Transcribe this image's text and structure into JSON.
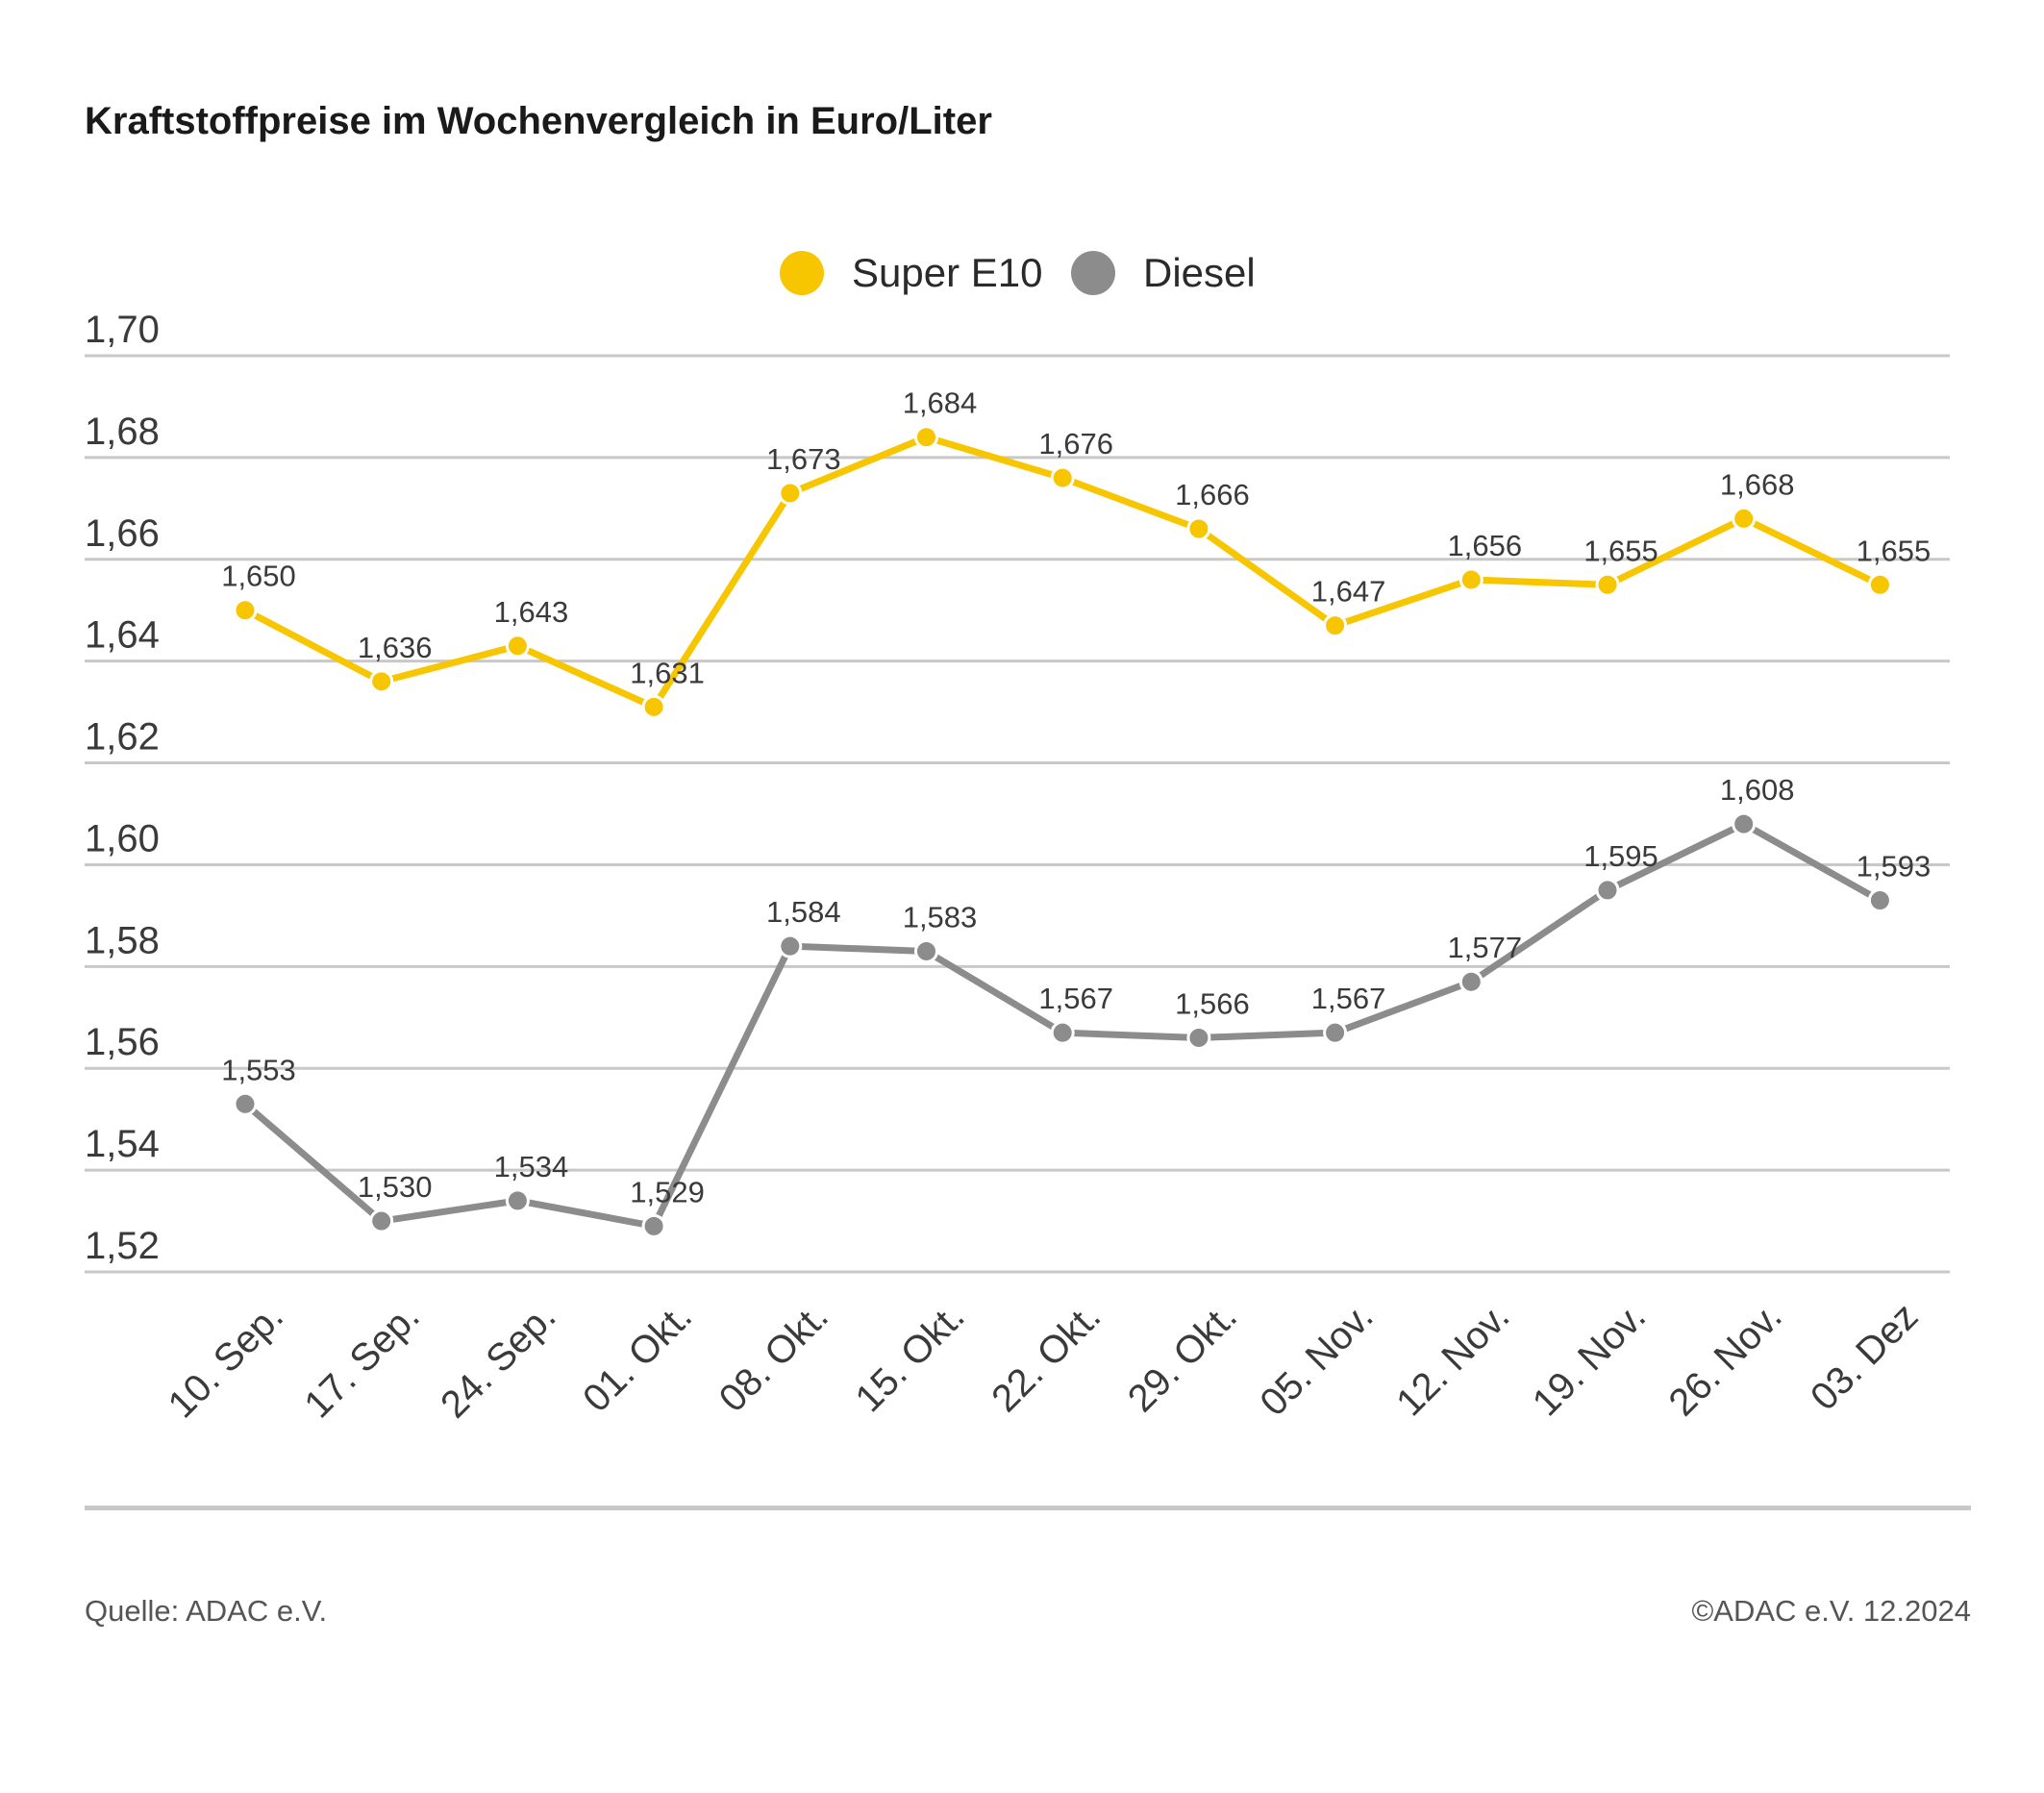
{
  "chart_data": {
    "type": "line",
    "title": "Kraftstoffpreise im Wochenvergleich in Euro/Liter",
    "categories": [
      "10. Sep.",
      "17. Sep.",
      "24. Sep.",
      "01. Okt.",
      "08. Okt.",
      "15. Okt.",
      "22. Okt.",
      "29. Okt.",
      "05. Nov.",
      "12. Nov.",
      "19. Nov.",
      "26. Nov.",
      "03. Dez"
    ],
    "series": [
      {
        "name": "Super E10",
        "color": "#f7c600",
        "values": [
          1.65,
          1.636,
          1.643,
          1.631,
          1.673,
          1.684,
          1.676,
          1.666,
          1.647,
          1.656,
          1.655,
          1.668,
          1.655
        ],
        "labels": [
          "1,650",
          "1,636",
          "1,643",
          "1,631",
          "1,673",
          "1,684",
          "1,676",
          "1,666",
          "1,647",
          "1,656",
          "1,655",
          "1,668",
          "1,655"
        ]
      },
      {
        "name": "Diesel",
        "color": "#8c8c8c",
        "values": [
          1.553,
          1.53,
          1.534,
          1.529,
          1.584,
          1.583,
          1.567,
          1.566,
          1.567,
          1.577,
          1.595,
          1.608,
          1.593
        ],
        "labels": [
          "1,553",
          "1,530",
          "1,534",
          "1,529",
          "1,584",
          "1,583",
          "1,567",
          "1,566",
          "1,567",
          "1,577",
          "1,595",
          "1,608",
          "1,593"
        ]
      }
    ],
    "ylim": [
      1.52,
      1.7
    ],
    "yticks": [
      "1,70",
      "1,68",
      "1,66",
      "1,64",
      "1,62",
      "1,60",
      "1,58",
      "1,56",
      "1,54",
      "1,52"
    ],
    "ytick_values": [
      1.7,
      1.68,
      1.66,
      1.64,
      1.62,
      1.6,
      1.58,
      1.56,
      1.54,
      1.52
    ],
    "legend_position": "top-center",
    "grid": true,
    "gridline_color": "#c8c8c8"
  },
  "footer": {
    "source": "Quelle: ADAC e.V.",
    "copyright": "©ADAC e.V. 12.2024"
  }
}
